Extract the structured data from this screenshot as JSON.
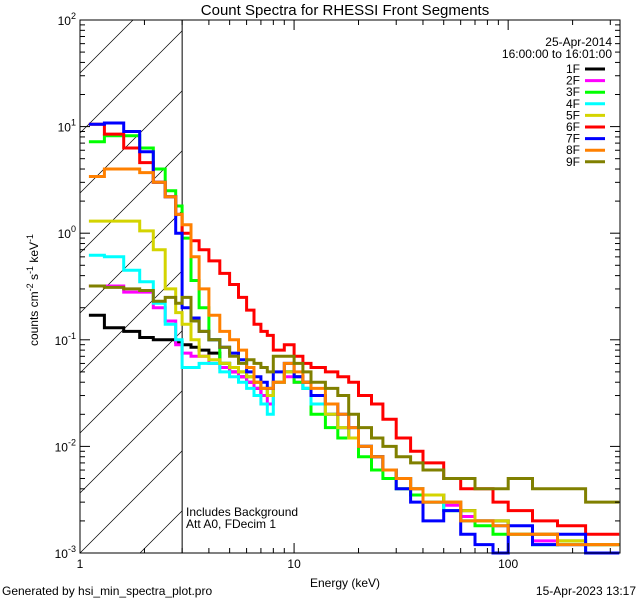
{
  "chart_data": {
    "type": "line",
    "title": "Count Spectra for RHESSI Front Segments",
    "xlabel": "Energy (keV)",
    "ylabel": {
      "parts": [
        {
          "t": "counts cm"
        },
        {
          "s": "-2"
        },
        {
          "t": " s"
        },
        {
          "s": "-1"
        },
        {
          "t": " keV"
        },
        {
          "s": "-1"
        }
      ]
    },
    "xscale": "log",
    "yscale": "log",
    "xlim": [
      1,
      333
    ],
    "ylim": [
      0.001,
      100
    ],
    "xticks": [
      {
        "v": 1,
        "label": "1"
      },
      {
        "v": 10,
        "label": "10"
      },
      {
        "v": 100,
        "label": "100"
      }
    ],
    "yticks": [
      {
        "v": 0.001,
        "base": "10",
        "exp": "-3"
      },
      {
        "v": 0.01,
        "base": "10",
        "exp": "-2"
      },
      {
        "v": 0.1,
        "base": "10",
        "exp": "-1"
      },
      {
        "v": 1,
        "base": "10",
        "exp": "0"
      },
      {
        "v": 10,
        "base": "10",
        "exp": "1"
      },
      {
        "v": 100,
        "base": "10",
        "exp": "2"
      }
    ],
    "legend_position": "top-right",
    "legend_header": [
      "25-Apr-2014",
      "16:00:00 to 16:01:00"
    ],
    "hatched_region_keV": [
      1,
      3
    ],
    "annotations": [
      "Includes Background",
      "Att A0, FDecim 1"
    ],
    "energy_edges": [
      1.1,
      1.3,
      1.6,
      1.9,
      2.2,
      2.5,
      2.8,
      3.0,
      3.3,
      3.6,
      4.0,
      4.5,
      5.0,
      5.5,
      6.0,
      6.5,
      7.0,
      7.5,
      8,
      9,
      10,
      11,
      12,
      14,
      16,
      18,
      20,
      23,
      26,
      30,
      35,
      40,
      50,
      60,
      70,
      85,
      100,
      130,
      170,
      230,
      330
    ],
    "series": [
      {
        "name": "1F",
        "color": "#000000",
        "values": [
          0.17,
          0.13,
          0.12,
          0.105,
          0.1,
          0.1,
          0.095,
          0.09,
          0.085,
          0.08,
          0.075,
          0.06,
          0.05,
          0.045,
          0.04,
          0.035,
          0.03,
          0.03,
          0.04,
          0.05,
          0.045,
          0.04,
          0.03,
          0.02,
          0.015,
          0.012,
          0.01,
          0.008,
          0.006,
          0.005,
          0.004,
          0.0035,
          0.003,
          0.0025,
          0.002,
          0.002,
          0.0015,
          0.0015,
          0.0012,
          0.0012
        ]
      },
      {
        "name": "2F",
        "color": "#ff00ff",
        "values": [
          0.32,
          0.32,
          0.28,
          0.28,
          0.2,
          0.15,
          0.09,
          0.075,
          0.07,
          0.07,
          0.06,
          0.055,
          0.05,
          0.045,
          0.04,
          0.035,
          0.03,
          0.025,
          0.04,
          0.045,
          0.04,
          0.035,
          0.025,
          0.02,
          0.015,
          0.012,
          0.01,
          0.008,
          0.006,
          0.005,
          0.004,
          0.003,
          0.0028,
          0.0022,
          0.002,
          0.0018,
          0.0015,
          0.0013,
          0.0012,
          0.001
        ]
      },
      {
        "name": "3F",
        "color": "#00ff00",
        "values": [
          7.2,
          8.2,
          8.2,
          6.3,
          4.0,
          2.5,
          1.8,
          0.9,
          0.36,
          0.2,
          0.1,
          0.06,
          0.055,
          0.05,
          0.045,
          0.04,
          0.035,
          0.03,
          0.04,
          0.05,
          0.04,
          0.035,
          0.02,
          0.015,
          0.012,
          0.012,
          0.008,
          0.006,
          0.005,
          0.004,
          0.0035,
          0.003,
          0.0025,
          0.002,
          0.0018,
          0.0015,
          0.0015,
          0.0012,
          0.0013,
          0.0012
        ]
      },
      {
        "name": "4F",
        "color": "#00ffff",
        "values": [
          0.62,
          0.6,
          0.45,
          0.35,
          0.22,
          0.14,
          0.1,
          0.055,
          0.055,
          0.06,
          0.06,
          0.05,
          0.045,
          0.04,
          0.035,
          0.03,
          0.025,
          0.02,
          0.04,
          0.05,
          0.045,
          0.035,
          0.025,
          0.02,
          0.015,
          0.012,
          0.01,
          0.008,
          0.006,
          0.005,
          0.004,
          0.003,
          0.0025,
          0.002,
          0.002,
          0.0018,
          0.0015,
          0.0012,
          0.0012,
          0.001
        ]
      },
      {
        "name": "5F",
        "color": "#d4d400",
        "values": [
          1.3,
          1.3,
          1.3,
          1.05,
          0.7,
          0.3,
          0.18,
          0.14,
          0.1,
          0.07,
          0.065,
          0.06,
          0.055,
          0.05,
          0.045,
          0.04,
          0.035,
          0.03,
          0.04,
          0.05,
          0.045,
          0.04,
          0.03,
          0.02,
          0.015,
          0.012,
          0.01,
          0.008,
          0.006,
          0.005,
          0.004,
          0.0035,
          0.003,
          0.0025,
          0.002,
          0.002,
          0.0015,
          0.0015,
          0.0013,
          0.0012
        ]
      },
      {
        "name": "6F",
        "color": "#ff0000",
        "values": [
          10.5,
          8.5,
          6.3,
          4.6,
          3.0,
          2.2,
          1.5,
          1.0,
          0.85,
          0.7,
          0.55,
          0.42,
          0.33,
          0.25,
          0.19,
          0.14,
          0.12,
          0.11,
          0.08,
          0.09,
          0.07,
          0.06,
          0.055,
          0.05,
          0.045,
          0.04,
          0.03,
          0.025,
          0.018,
          0.012,
          0.009,
          0.007,
          0.005,
          0.004,
          0.004,
          0.003,
          0.0025,
          0.002,
          0.0018,
          0.0015
        ]
      },
      {
        "name": "7F",
        "color": "#0000ff",
        "values": [
          10.5,
          10.8,
          9.0,
          5.8,
          3.0,
          2.2,
          1.0,
          0.2,
          0.16,
          0.12,
          0.1,
          0.085,
          0.075,
          0.065,
          0.05,
          0.045,
          0.04,
          0.035,
          0.05,
          0.06,
          0.045,
          0.04,
          0.03,
          0.025,
          0.02,
          0.015,
          0.01,
          0.008,
          0.006,
          0.004,
          0.003,
          0.002,
          0.0025,
          0.0015,
          0.0012,
          0.001,
          0.0018,
          0.0012,
          0.0015,
          0.001
        ]
      },
      {
        "name": "8F",
        "color": "#ff8000",
        "values": [
          3.4,
          4.0,
          4.0,
          3.7,
          3.0,
          2.2,
          1.5,
          1.2,
          0.6,
          0.3,
          0.17,
          0.12,
          0.1,
          0.08,
          0.055,
          0.04,
          0.035,
          0.035,
          0.04,
          0.06,
          0.05,
          0.04,
          0.035,
          0.025,
          0.02,
          0.015,
          0.01,
          0.008,
          0.006,
          0.005,
          0.004,
          0.003,
          0.003,
          0.002,
          0.002,
          0.0018,
          0.0015,
          0.0015,
          0.0012,
          0.0012
        ]
      },
      {
        "name": "9F",
        "color": "#808000",
        "values": [
          0.32,
          0.31,
          0.3,
          0.29,
          0.23,
          0.25,
          0.22,
          0.25,
          0.15,
          0.12,
          0.1,
          0.085,
          0.07,
          0.06,
          0.065,
          0.06,
          0.055,
          0.05,
          0.07,
          0.07,
          0.06,
          0.05,
          0.04,
          0.035,
          0.03,
          0.02,
          0.015,
          0.012,
          0.01,
          0.008,
          0.007,
          0.006,
          0.005,
          0.005,
          0.004,
          0.004,
          0.005,
          0.004,
          0.004,
          0.003
        ]
      }
    ]
  },
  "footer": {
    "left": "Generated by hsi_min_spectra_plot.pro",
    "right": "15-Apr-2023 13:17"
  }
}
